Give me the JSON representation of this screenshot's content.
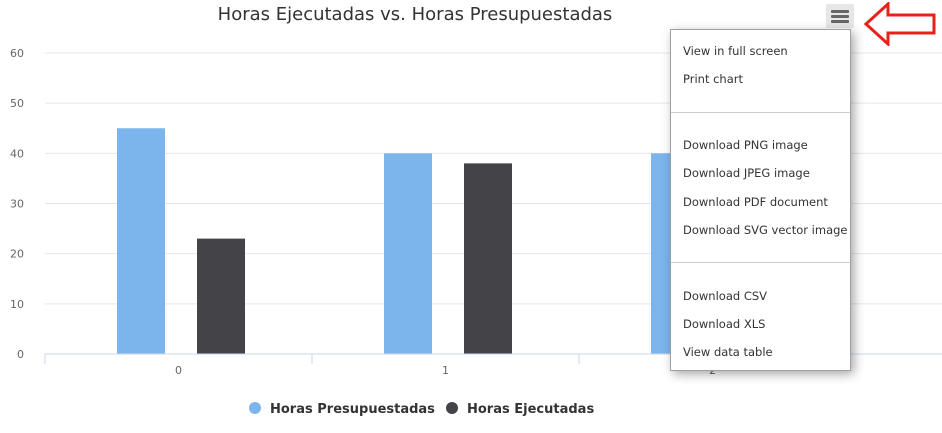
{
  "chart_data": {
    "type": "bar",
    "title": "Horas Ejecutadas vs. Horas Presupuestadas",
    "categories": [
      "0",
      "1",
      "2"
    ],
    "series": [
      {
        "name": "Horas Presupuestadas",
        "color": "#7cb5ec",
        "values": [
          45,
          40,
          40
        ]
      },
      {
        "name": "Horas Ejecutadas",
        "color": "#434348",
        "values": [
          23,
          38,
          null
        ]
      }
    ],
    "y_ticks": [
      "0",
      "10",
      "20",
      "30",
      "40",
      "50",
      "60"
    ],
    "ylim": [
      0,
      60
    ],
    "grid": true,
    "legend": "bottom-center"
  },
  "menu": {
    "items": [
      "View in full screen",
      "Print chart",
      "Download PNG image",
      "Download JPEG image",
      "Download PDF document",
      "Download SVG vector image",
      "Download CSV",
      "Download XLS",
      "View data table"
    ]
  },
  "colors": {
    "annotation_arrow": "#e8221b",
    "grid": "#e6e6e6",
    "axis": "#ccd6eb"
  },
  "icons": {
    "menu_button": "hamburger-menu-icon",
    "annotation": "left-arrow-outline-icon"
  }
}
